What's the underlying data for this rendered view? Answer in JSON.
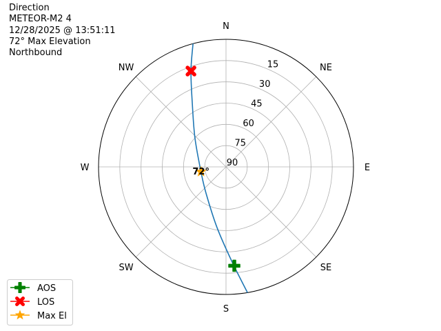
{
  "info": {
    "lines": [
      "Direction",
      "METEOR-M2 4",
      "12/28/2025 @ 13:51:11",
      "72° Max Elevation",
      "Northbound"
    ]
  },
  "chart_data": {
    "type": "polar-line",
    "theta_direction": "clockwise",
    "theta_zero": "N",
    "compass_labels": [
      "N",
      "NE",
      "E",
      "SE",
      "S",
      "SW",
      "W",
      "NW"
    ],
    "radial_ticks": [
      15,
      30,
      45,
      60,
      75,
      90
    ],
    "radial_axis": "elevation (90 at center, 0 at edge)",
    "grid": true,
    "track": {
      "color": "#1f77b4",
      "points": [
        {
          "az": 170.3,
          "el": 0
        },
        {
          "az": 176.3,
          "el": 22.7
        },
        {
          "az": 188.4,
          "el": 46.7
        },
        {
          "az": 217.3,
          "el": 66.7
        },
        {
          "az": 259,
          "el": 72
        },
        {
          "az": 313,
          "el": 60
        },
        {
          "az": 332,
          "el": 39.3
        },
        {
          "az": 339.9,
          "el": 18
        },
        {
          "az": 345,
          "el": 0
        }
      ]
    },
    "markers": [
      {
        "name": "AOS",
        "az": 175.2,
        "el": 20,
        "color": "#008000",
        "shape": "plus"
      },
      {
        "name": "LOS",
        "az": 339.9,
        "el": 18,
        "color": "#ff0000",
        "shape": "x"
      },
      {
        "name": "Max El",
        "az": 259,
        "el": 72,
        "color": "#ffa500",
        "shape": "star"
      }
    ],
    "annotations": [
      {
        "text": "72°",
        "az": 259,
        "el": 72
      }
    ],
    "legend": {
      "placement": "lower-left",
      "entries": [
        "AOS",
        "LOS",
        "Max El"
      ]
    }
  }
}
